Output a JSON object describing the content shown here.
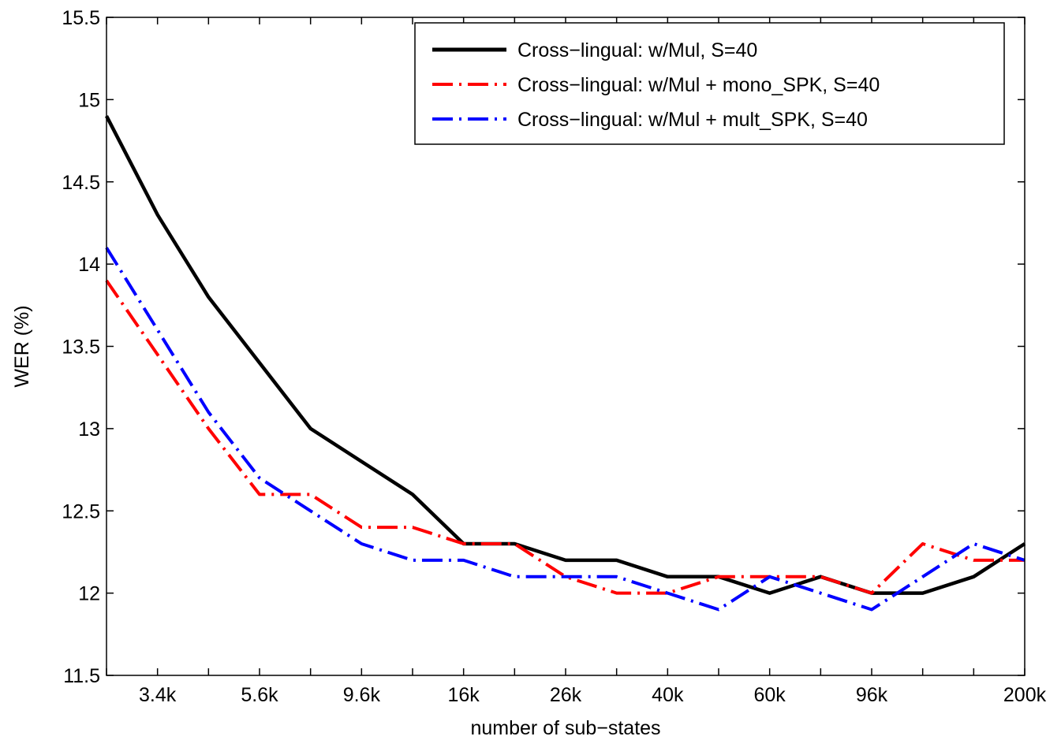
{
  "chart_data": {
    "type": "line",
    "title": "",
    "xlabel": "number of sub−states",
    "ylabel": "WER (%)",
    "ylim": [
      11.5,
      15.5
    ],
    "yticks": [
      11.5,
      12,
      12.5,
      13,
      13.5,
      14,
      14.5,
      15,
      15.5
    ],
    "ytick_labels": [
      "11.5",
      "12",
      "12.5",
      "13",
      "13.5",
      "14",
      "14.5",
      "15",
      "15.5"
    ],
    "x_index_range": [
      1,
      19
    ],
    "xtick_positions": [
      2,
      4,
      6,
      8,
      10,
      12,
      14,
      16,
      19
    ],
    "xtick_labels": [
      "3.4k",
      "5.6k",
      "9.6k",
      "16k",
      "26k",
      "40k",
      "60k",
      "96k",
      "200k"
    ],
    "grid": false,
    "legend": "top-right",
    "series": [
      {
        "name": "Cross−lingual: w/Mul, S=40",
        "color": "#000000",
        "style": "solid",
        "x": [
          1,
          2,
          3,
          4,
          5,
          6,
          7,
          8,
          9,
          10,
          11,
          12,
          13,
          14,
          15,
          16,
          17,
          18,
          19
        ],
        "values": [
          14.9,
          14.3,
          13.8,
          13.4,
          13.0,
          12.8,
          12.6,
          12.3,
          12.3,
          12.2,
          12.2,
          12.1,
          12.1,
          12.0,
          12.1,
          12.0,
          12.0,
          12.1,
          12.3
        ]
      },
      {
        "name": "Cross−lingual: w/Mul + mono_SPK, S=40",
        "color": "#ff0000",
        "style": "dashdot",
        "x": [
          1,
          2,
          3,
          4,
          5,
          6,
          7,
          8,
          9,
          10,
          11,
          12,
          13,
          14,
          15,
          16,
          17,
          18,
          19
        ],
        "values": [
          13.9,
          13.45,
          13.0,
          12.6,
          12.6,
          12.4,
          12.4,
          12.3,
          12.3,
          12.1,
          12.0,
          12.0,
          12.1,
          12.1,
          12.1,
          12.0,
          12.3,
          12.2,
          12.2
        ]
      },
      {
        "name": "Cross−lingual: w/Mul + mult_SPK, S=40",
        "color": "#0000ff",
        "style": "dashdot",
        "x": [
          1,
          2,
          3,
          4,
          5,
          6,
          7,
          8,
          9,
          10,
          11,
          12,
          13,
          14,
          15,
          16,
          17,
          18,
          19
        ],
        "values": [
          14.1,
          13.6,
          13.1,
          12.7,
          12.5,
          12.3,
          12.2,
          12.2,
          12.1,
          12.1,
          12.1,
          12.0,
          11.9,
          12.1,
          12.0,
          11.9,
          12.1,
          12.3,
          12.2
        ]
      }
    ]
  }
}
